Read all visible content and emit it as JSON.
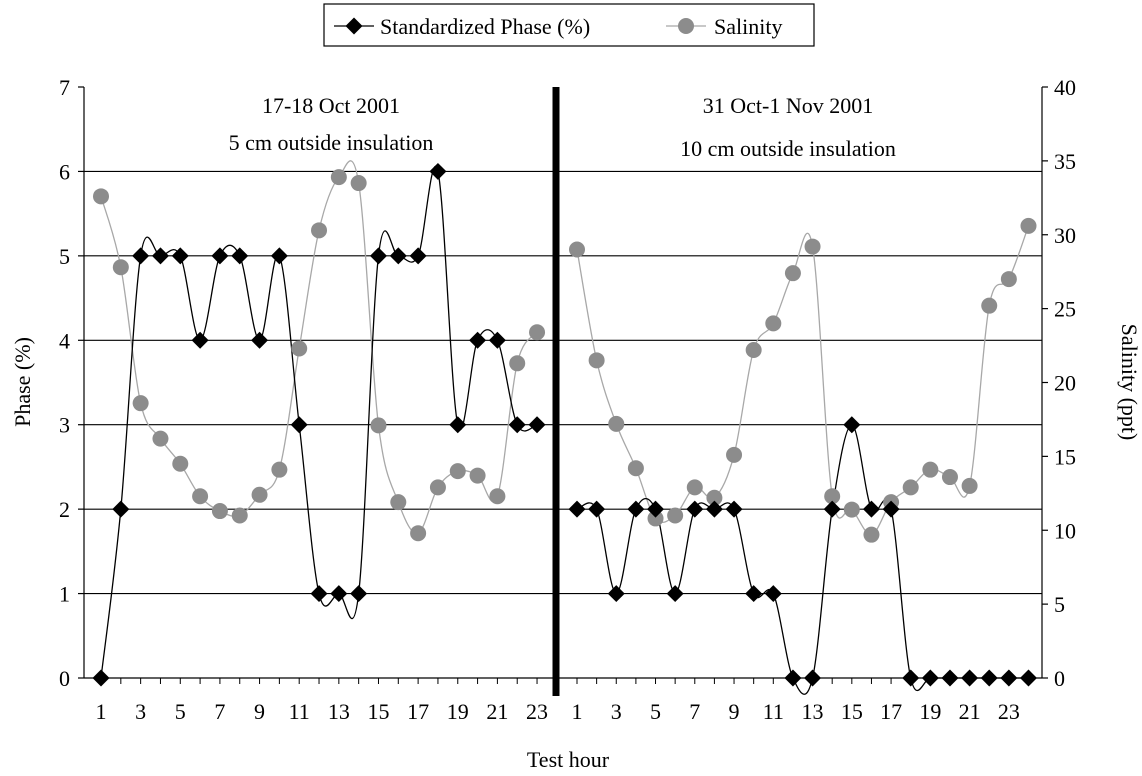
{
  "chart_data": {
    "type": "line",
    "legend": {
      "placement": "top-center",
      "entries": [
        "Standardized Phase (%)",
        "Salinity"
      ]
    },
    "xlabel": "Test hour",
    "ylabel_left": "Phase (%)",
    "ylabel_right": "Salinity (ppt)",
    "y_left_lim": [
      0,
      7
    ],
    "y_right_lim": [
      0,
      40
    ],
    "y_left_ticks": [
      0,
      1,
      2,
      3,
      4,
      5,
      6,
      7
    ],
    "y_right_ticks": [
      0,
      5,
      10,
      15,
      20,
      25,
      30,
      35,
      40
    ],
    "gridlines": "horizontal",
    "colors": {
      "phase": "#000000",
      "salinity": "#8c8c8c",
      "salinity_line": "#a8a8a8",
      "grid": "#000000",
      "divider": "#000000"
    },
    "panels": [
      {
        "annotation": [
          "17-18 Oct 2001",
          "5 cm outside insulation"
        ],
        "hours": [
          1,
          2,
          3,
          4,
          5,
          6,
          7,
          8,
          9,
          10,
          11,
          12,
          13,
          14,
          15,
          16,
          17,
          18,
          19,
          20,
          21,
          22,
          23
        ],
        "x_tick_labels": [
          "1",
          "3",
          "5",
          "7",
          "9",
          "11",
          "13",
          "15",
          "17",
          "19",
          "21",
          "23"
        ],
        "phase": [
          0,
          2,
          5,
          5,
          5,
          4,
          5,
          5,
          4,
          5,
          3,
          1,
          1,
          1,
          5,
          5,
          5,
          6,
          3,
          4,
          4,
          3,
          3
        ],
        "salinity": [
          32.6,
          27.8,
          18.6,
          16.2,
          14.5,
          12.3,
          11.3,
          11.0,
          12.4,
          14.1,
          22.3,
          30.3,
          33.9,
          33.5,
          17.1,
          11.9,
          9.8,
          12.9,
          14.0,
          13.7,
          12.3,
          21.3,
          23.4
        ]
      },
      {
        "annotation": [
          "31 Oct-1 Nov 2001",
          "10 cm outside insulation"
        ],
        "hours": [
          1,
          2,
          3,
          4,
          5,
          6,
          7,
          8,
          9,
          10,
          11,
          12,
          13,
          14,
          15,
          16,
          17,
          18,
          19,
          20,
          21,
          22,
          23,
          24
        ],
        "x_tick_labels": [
          "1",
          "3",
          "5",
          "7",
          "9",
          "11",
          "13",
          "15",
          "17",
          "19",
          "21",
          "23"
        ],
        "phase": [
          2,
          2,
          1,
          2,
          2,
          1,
          2,
          2,
          2,
          1,
          1,
          0,
          0,
          2,
          3,
          2,
          2,
          0,
          0,
          0,
          0,
          0,
          0,
          0
        ],
        "salinity": [
          29.0,
          21.5,
          17.2,
          14.2,
          10.8,
          11.0,
          12.9,
          12.2,
          15.1,
          22.2,
          24.0,
          27.4,
          29.2,
          12.3,
          11.4,
          9.7,
          11.9,
          12.9,
          14.1,
          13.6,
          13.0,
          25.2,
          27.0,
          30.6
        ]
      }
    ]
  }
}
